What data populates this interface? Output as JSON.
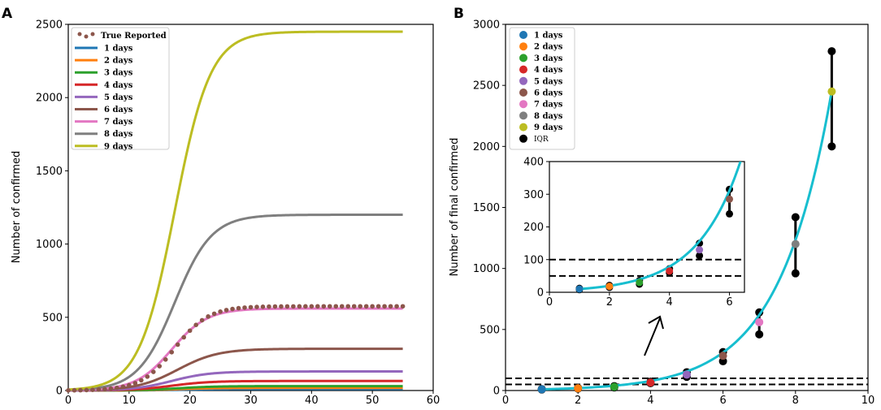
{
  "chart_data": [
    {
      "panel": "A",
      "type": "line",
      "title": "",
      "xlabel": "",
      "ylabel": "Number of confirmed",
      "xlim": [
        0,
        60
      ],
      "ylim": [
        0,
        2500
      ],
      "xticks": [
        0,
        10,
        20,
        30,
        40,
        50,
        60
      ],
      "yticks": [
        0,
        500,
        1000,
        1500,
        2000,
        2500
      ],
      "grid": false,
      "legend_position": "top-left",
      "scatter": {
        "name": "True Reported",
        "color": "#8c564b",
        "x_start": 0,
        "x_end": 55,
        "final": 575,
        "midpoint": 17.5,
        "rate": 0.36
      },
      "series": [
        {
          "name": "1 days",
          "color": "#1f77b4",
          "final": 10,
          "midpoint": 18,
          "rate": 0.32
        },
        {
          "name": "2 days",
          "color": "#ff7f0e",
          "final": 18,
          "midpoint": 18,
          "rate": 0.32
        },
        {
          "name": "3 days",
          "color": "#2ca02c",
          "final": 30,
          "midpoint": 18,
          "rate": 0.32
        },
        {
          "name": "4 days",
          "color": "#d62728",
          "final": 65,
          "midpoint": 17,
          "rate": 0.32
        },
        {
          "name": "5 days",
          "color": "#9467bd",
          "final": 130,
          "midpoint": 17,
          "rate": 0.32
        },
        {
          "name": "6 days",
          "color": "#8c564b",
          "final": 285,
          "midpoint": 18,
          "rate": 0.3
        },
        {
          "name": "7 days",
          "color": "#e377c2",
          "final": 560,
          "midpoint": 17,
          "rate": 0.34
        },
        {
          "name": "8 days",
          "color": "#7f7f7f",
          "final": 1200,
          "midpoint": 17.5,
          "rate": 0.33
        },
        {
          "name": "9 days",
          "color": "#bcbd22",
          "final": 2450,
          "midpoint": 17.5,
          "rate": 0.34
        }
      ]
    },
    {
      "panel": "B",
      "type": "scatter",
      "title": "",
      "xlabel": "",
      "ylabel": "Number of final confirmed",
      "xlim": [
        0,
        10
      ],
      "ylim": [
        0,
        3000
      ],
      "xticks": [
        0,
        2,
        4,
        6,
        8,
        10
      ],
      "yticks": [
        0,
        500,
        1000,
        1500,
        2000,
        2500,
        3000
      ],
      "grid": false,
      "legend_position": "top-left",
      "hlines": [
        50,
        100
      ],
      "fit_color": "#17becf",
      "points": [
        {
          "name": "1 days",
          "x": 1,
          "y": 10,
          "color": "#1f77b4"
        },
        {
          "name": "2 days",
          "x": 2,
          "y": 18,
          "color": "#ff7f0e"
        },
        {
          "name": "3 days",
          "x": 3,
          "y": 30,
          "color": "#2ca02c"
        },
        {
          "name": "4 days",
          "x": 4,
          "y": 65,
          "color": "#d62728"
        },
        {
          "name": "5 days",
          "x": 5,
          "y": 130,
          "color": "#9467bd"
        },
        {
          "name": "6 days",
          "x": 6,
          "y": 285,
          "color": "#8c564b"
        },
        {
          "name": "7 days",
          "x": 7,
          "y": 560,
          "color": "#e377c2"
        },
        {
          "name": "8 days",
          "x": 8,
          "y": 1200,
          "color": "#7f7f7f"
        },
        {
          "name": "9 days",
          "x": 9,
          "y": 2450,
          "color": "#bcbd22"
        }
      ],
      "iqr": {
        "name": "IQR",
        "color": "#000000",
        "ranges": [
          {
            "x": 1,
            "low": 8,
            "high": 12
          },
          {
            "x": 2,
            "low": 15,
            "high": 21
          },
          {
            "x": 3,
            "low": 25,
            "high": 36
          },
          {
            "x": 4,
            "low": 60,
            "high": 72
          },
          {
            "x": 5,
            "low": 112,
            "high": 150
          },
          {
            "x": 6,
            "low": 240,
            "high": 315
          },
          {
            "x": 7,
            "low": 460,
            "high": 640
          },
          {
            "x": 8,
            "low": 960,
            "high": 1420
          },
          {
            "x": 9,
            "low": 2000,
            "high": 2780
          }
        ]
      },
      "inset": {
        "xlim": [
          0,
          6.5
        ],
        "ylim": [
          0,
          400
        ],
        "xticks": [
          0,
          2,
          4,
          6
        ],
        "yticks": [
          0,
          100,
          200,
          300,
          400
        ]
      }
    }
  ]
}
